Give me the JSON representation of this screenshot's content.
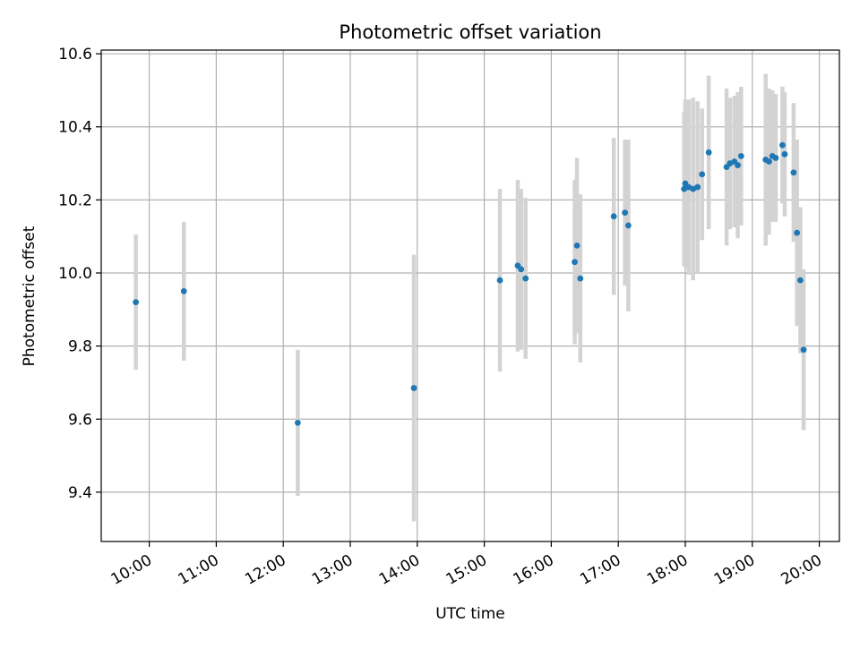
{
  "chart_data": {
    "type": "scatter",
    "title": "Photometric offset variation",
    "xlabel": "UTC time",
    "ylabel": "Photometric offset",
    "x_axis": {
      "type": "time",
      "ticks": [
        "10:00",
        "11:00",
        "12:00",
        "13:00",
        "14:00",
        "15:00",
        "16:00",
        "17:00",
        "18:00",
        "19:00",
        "20:00"
      ],
      "xlim": [
        "09:17",
        "20:18"
      ]
    },
    "y_axis": {
      "ticks": [
        "9.4",
        "9.6",
        "9.8",
        "10.0",
        "10.2",
        "10.4",
        "10.6"
      ],
      "ylim": [
        9.265,
        10.61
      ]
    },
    "grid": true,
    "colors": {
      "points": "#1f77b4",
      "errorbars": "#d3d3d3"
    },
    "points": [
      {
        "x": "09:48",
        "y": 9.92,
        "err": 0.185
      },
      {
        "x": "10:31",
        "y": 9.95,
        "err": 0.19
      },
      {
        "x": "12:13",
        "y": 9.59,
        "err": 0.2
      },
      {
        "x": "13:57",
        "y": 9.685,
        "err": 0.365
      },
      {
        "x": "15:14",
        "y": 9.98,
        "err": 0.25
      },
      {
        "x": "15:30",
        "y": 10.02,
        "err": 0.235
      },
      {
        "x": "15:33",
        "y": 10.01,
        "err": 0.22
      },
      {
        "x": "15:37",
        "y": 9.985,
        "err": 0.22
      },
      {
        "x": "16:21",
        "y": 10.03,
        "err": 0.225
      },
      {
        "x": "16:23",
        "y": 10.075,
        "err": 0.24
      },
      {
        "x": "16:26",
        "y": 9.985,
        "err": 0.23
      },
      {
        "x": "16:56",
        "y": 10.155,
        "err": 0.215
      },
      {
        "x": "17:06",
        "y": 10.165,
        "err": 0.2
      },
      {
        "x": "17:09",
        "y": 10.13,
        "err": 0.235
      },
      {
        "x": "17:59",
        "y": 10.23,
        "err": 0.21
      },
      {
        "x": "18:00",
        "y": 10.245,
        "err": 0.23
      },
      {
        "x": "18:03",
        "y": 10.235,
        "err": 0.24
      },
      {
        "x": "18:07",
        "y": 10.23,
        "err": 0.25
      },
      {
        "x": "18:11",
        "y": 10.235,
        "err": 0.235
      },
      {
        "x": "18:15",
        "y": 10.27,
        "err": 0.18
      },
      {
        "x": "18:21",
        "y": 10.33,
        "err": 0.21
      },
      {
        "x": "18:37",
        "y": 10.29,
        "err": 0.215
      },
      {
        "x": "18:40",
        "y": 10.3,
        "err": 0.18
      },
      {
        "x": "18:44",
        "y": 10.305,
        "err": 0.18
      },
      {
        "x": "18:47",
        "y": 10.295,
        "err": 0.2
      },
      {
        "x": "18:50",
        "y": 10.32,
        "err": 0.19
      },
      {
        "x": "19:12",
        "y": 10.31,
        "err": 0.235
      },
      {
        "x": "19:15",
        "y": 10.305,
        "err": 0.2
      },
      {
        "x": "19:18",
        "y": 10.32,
        "err": 0.18
      },
      {
        "x": "19:21",
        "y": 10.315,
        "err": 0.175
      },
      {
        "x": "19:27",
        "y": 10.35,
        "err": 0.16
      },
      {
        "x": "19:29",
        "y": 10.325,
        "err": 0.17
      },
      {
        "x": "19:37",
        "y": 10.275,
        "err": 0.19
      },
      {
        "x": "19:40",
        "y": 10.11,
        "err": 0.255
      },
      {
        "x": "19:43",
        "y": 9.98,
        "err": 0.2
      },
      {
        "x": "19:46",
        "y": 9.79,
        "err": 0.22
      }
    ]
  }
}
